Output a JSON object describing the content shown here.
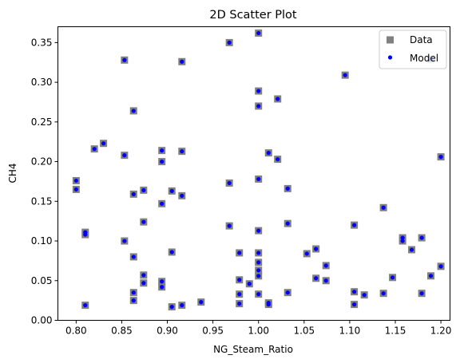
{
  "chart_data": {
    "type": "scatter",
    "title": "2D Scatter Plot",
    "xlabel": "NG_Steam_Ratio",
    "ylabel": "CH4",
    "xlim": [
      0.78,
      1.21
    ],
    "ylim": [
      0.0,
      0.37
    ],
    "xticks": [
      "0.80",
      "0.85",
      "0.90",
      "0.95",
      "1.00",
      "1.05",
      "1.10",
      "1.15",
      "1.20"
    ],
    "yticks": [
      "0.00",
      "0.05",
      "0.10",
      "0.15",
      "0.20",
      "0.25",
      "0.30",
      "0.35"
    ],
    "grid": false,
    "legend_position": "top-right",
    "series": [
      {
        "name": "Data",
        "marker": "square",
        "color": "#808080",
        "points": [
          [
            0.8,
            0.176
          ],
          [
            0.8,
            0.165
          ],
          [
            0.81,
            0.111
          ],
          [
            0.81,
            0.108
          ],
          [
            0.81,
            0.019
          ],
          [
            0.82,
            0.216
          ],
          [
            0.83,
            0.223
          ],
          [
            0.853,
            0.328
          ],
          [
            0.853,
            0.208
          ],
          [
            0.853,
            0.1
          ],
          [
            0.863,
            0.264
          ],
          [
            0.863,
            0.159
          ],
          [
            0.863,
            0.08
          ],
          [
            0.863,
            0.035
          ],
          [
            0.863,
            0.025
          ],
          [
            0.874,
            0.164
          ],
          [
            0.874,
            0.124
          ],
          [
            0.874,
            0.057
          ],
          [
            0.874,
            0.047
          ],
          [
            0.894,
            0.214
          ],
          [
            0.894,
            0.2
          ],
          [
            0.894,
            0.147
          ],
          [
            0.894,
            0.049
          ],
          [
            0.894,
            0.042
          ],
          [
            0.905,
            0.163
          ],
          [
            0.905,
            0.086
          ],
          [
            0.905,
            0.017
          ],
          [
            0.916,
            0.326
          ],
          [
            0.916,
            0.213
          ],
          [
            0.916,
            0.157
          ],
          [
            0.916,
            0.019
          ],
          [
            0.937,
            0.023
          ],
          [
            0.968,
            0.35
          ],
          [
            0.968,
            0.173
          ],
          [
            0.968,
            0.119
          ],
          [
            0.979,
            0.085
          ],
          [
            0.979,
            0.051
          ],
          [
            0.979,
            0.033
          ],
          [
            0.979,
            0.021
          ],
          [
            0.99,
            0.046
          ],
          [
            1.0,
            0.362
          ],
          [
            1.0,
            0.289
          ],
          [
            1.0,
            0.27
          ],
          [
            1.0,
            0.178
          ],
          [
            1.0,
            0.113
          ],
          [
            1.0,
            0.085
          ],
          [
            1.0,
            0.073
          ],
          [
            1.0,
            0.063
          ],
          [
            1.0,
            0.056
          ],
          [
            1.0,
            0.033
          ],
          [
            1.011,
            0.211
          ],
          [
            1.011,
            0.022
          ],
          [
            1.011,
            0.02
          ],
          [
            1.021,
            0.279
          ],
          [
            1.021,
            0.203
          ],
          [
            1.032,
            0.166
          ],
          [
            1.032,
            0.122
          ],
          [
            1.032,
            0.035
          ],
          [
            1.053,
            0.084
          ],
          [
            1.063,
            0.09
          ],
          [
            1.063,
            0.053
          ],
          [
            1.074,
            0.069
          ],
          [
            1.074,
            0.05
          ],
          [
            1.095,
            0.309
          ],
          [
            1.105,
            0.12
          ],
          [
            1.105,
            0.036
          ],
          [
            1.105,
            0.02
          ],
          [
            1.116,
            0.032
          ],
          [
            1.137,
            0.142
          ],
          [
            1.137,
            0.034
          ],
          [
            1.147,
            0.054
          ],
          [
            1.158,
            0.104
          ],
          [
            1.158,
            0.1
          ],
          [
            1.168,
            0.089
          ],
          [
            1.179,
            0.104
          ],
          [
            1.179,
            0.034
          ],
          [
            1.189,
            0.329
          ],
          [
            1.189,
            0.056
          ],
          [
            1.2,
            0.206
          ],
          [
            1.2,
            0.068
          ]
        ]
      },
      {
        "name": "Model",
        "marker": "circle",
        "color": "#0000ff",
        "same_points_as": "Data"
      }
    ]
  }
}
